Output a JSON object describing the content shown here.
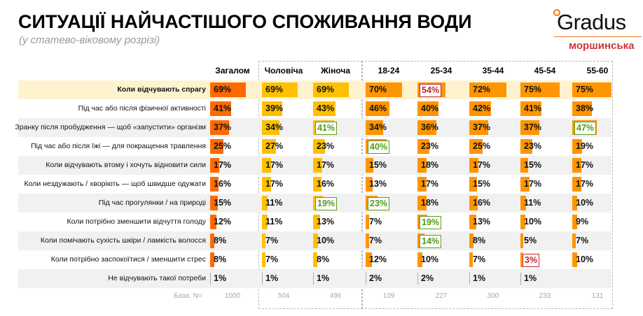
{
  "title": "СИТУАЦІЇ НАЙЧАСТІШОГО СПОЖИВАННЯ ВОДИ",
  "subtitle": "(у статево-віковому розрізі)",
  "logo": {
    "brand": "Gradus",
    "sub": "моршинська"
  },
  "chart_data": {
    "type": "table",
    "title": "СИТУАЦІЇ НАЙЧАСТІШОГО СПОЖИВАННЯ ВОДИ",
    "subtitle": "(у статево-віковому розрізі)",
    "columns": [
      "Загалом",
      "Чоловіча",
      "Жіноча",
      "18-24",
      "25-34",
      "35-44",
      "45-54",
      "55-60"
    ],
    "column_colors": [
      "#ff6a00",
      "#ffc000",
      "#ffc000",
      "#ff9500",
      "#ff9500",
      "#ff9500",
      "#ff9500",
      "#ff9500"
    ],
    "highlight_colors": {
      "higher": "#4e9a14",
      "lower": "#c2272d",
      "row_highlight": "#fff3cf"
    },
    "rows": [
      {
        "label": "Коли відчувають спрагу",
        "values": [
          69,
          69,
          69,
          70,
          54,
          72,
          75,
          75
        ],
        "value_labels": [
          "69%",
          "69%",
          "69%",
          "70%",
          "54%",
          "72%",
          "75%",
          "75%"
        ],
        "marks": [
          "",
          "",
          "",
          "",
          "lo",
          "",
          "",
          ""
        ]
      },
      {
        "label": "Під час або після фізичної активності",
        "values": [
          41,
          39,
          43,
          46,
          40,
          42,
          41,
          38
        ],
        "value_labels": [
          "41%",
          "39%",
          "43%",
          "46%",
          "40%",
          "42%",
          "41%",
          "38%"
        ],
        "marks": [
          "",
          "",
          "",
          "",
          "",
          "",
          "",
          ""
        ]
      },
      {
        "label": "Зранку після пробудження — щоб «запустити» організм",
        "values": [
          37,
          34,
          41,
          34,
          36,
          37,
          37,
          47
        ],
        "value_labels": [
          "37%",
          "34%",
          "41%",
          "34%",
          "36%",
          "37%",
          "37%",
          "47%"
        ],
        "marks": [
          "",
          "",
          "hi",
          "",
          "",
          "",
          "",
          "hi"
        ]
      },
      {
        "label": "Під час або після їжі — для покращення травлення",
        "values": [
          25,
          27,
          23,
          40,
          23,
          25,
          23,
          19
        ],
        "value_labels": [
          "25%",
          "27%",
          "23%",
          "40%",
          "23%",
          "25%",
          "23%",
          "19%"
        ],
        "marks": [
          "",
          "",
          "",
          "hi",
          "",
          "",
          "",
          ""
        ]
      },
      {
        "label": "Коли відчувають втому і хочуть відновити сили",
        "values": [
          17,
          17,
          17,
          15,
          18,
          17,
          15,
          17
        ],
        "value_labels": [
          "17%",
          "17%",
          "17%",
          "15%",
          "18%",
          "17%",
          "15%",
          "17%"
        ],
        "marks": [
          "",
          "",
          "",
          "",
          "",
          "",
          "",
          ""
        ]
      },
      {
        "label": "Коли нездужають / хворіють — щоб швидше одужати",
        "values": [
          16,
          17,
          16,
          13,
          17,
          15,
          17,
          17
        ],
        "value_labels": [
          "16%",
          "17%",
          "16%",
          "13%",
          "17%",
          "15%",
          "17%",
          "17%"
        ],
        "marks": [
          "",
          "",
          "",
          "",
          "",
          "",
          "",
          ""
        ]
      },
      {
        "label": "Під час прогулянки / на природі",
        "values": [
          15,
          11,
          19,
          23,
          18,
          16,
          11,
          10
        ],
        "value_labels": [
          "15%",
          "11%",
          "19%",
          "23%",
          "18%",
          "16%",
          "11%",
          "10%"
        ],
        "marks": [
          "",
          "",
          "hi",
          "hi",
          "",
          "",
          "",
          ""
        ]
      },
      {
        "label": "Коли потрібно зменшити відчуття голоду",
        "values": [
          12,
          11,
          13,
          7,
          19,
          13,
          10,
          9
        ],
        "value_labels": [
          "12%",
          "11%",
          "13%",
          "7%",
          "19%",
          "13%",
          "10%",
          "9%"
        ],
        "marks": [
          "",
          "",
          "",
          "",
          "hi",
          "",
          "",
          ""
        ]
      },
      {
        "label": "Коли помічають сухість шкіри / ламкість волосся",
        "values": [
          8,
          7,
          10,
          7,
          14,
          8,
          5,
          7
        ],
        "value_labels": [
          "8%",
          "7%",
          "10%",
          "7%",
          "14%",
          "8%",
          "5%",
          "7%"
        ],
        "marks": [
          "",
          "",
          "",
          "",
          "hi",
          "",
          "",
          ""
        ]
      },
      {
        "label": "Коли потрібно заспокоїтися / зменшити стрес",
        "values": [
          8,
          7,
          8,
          12,
          10,
          7,
          3,
          10
        ],
        "value_labels": [
          "8%",
          "7%",
          "8%",
          "12%",
          "10%",
          "7%",
          "3%",
          "10%"
        ],
        "marks": [
          "",
          "",
          "",
          "",
          "",
          "",
          "lo",
          ""
        ]
      },
      {
        "label": "Не відчувають такої потреби",
        "values": [
          1,
          1,
          1,
          2,
          2,
          1,
          1,
          null
        ],
        "value_labels": [
          "1%",
          "1%",
          "1%",
          "2%",
          "2%",
          "1%",
          "1%",
          ""
        ],
        "marks": [
          "",
          "",
          "",
          "",
          "",
          "",
          "",
          ""
        ]
      }
    ],
    "base": {
      "label": "База: N=",
      "values": [
        "1000",
        "504",
        "496",
        "109",
        "227",
        "300",
        "233",
        "131"
      ]
    }
  }
}
